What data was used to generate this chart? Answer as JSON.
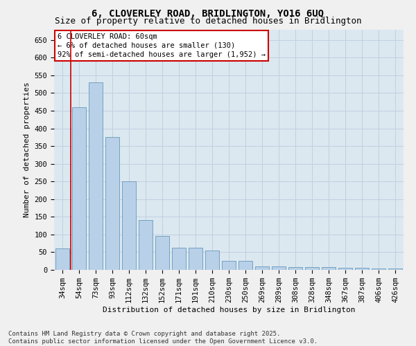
{
  "title1": "6, CLOVERLEY ROAD, BRIDLINGTON, YO16 6UQ",
  "title2": "Size of property relative to detached houses in Bridlington",
  "xlabel": "Distribution of detached houses by size in Bridlington",
  "ylabel": "Number of detached properties",
  "categories": [
    "34sqm",
    "54sqm",
    "73sqm",
    "93sqm",
    "112sqm",
    "132sqm",
    "152sqm",
    "171sqm",
    "191sqm",
    "210sqm",
    "230sqm",
    "250sqm",
    "269sqm",
    "289sqm",
    "308sqm",
    "328sqm",
    "348sqm",
    "367sqm",
    "387sqm",
    "406sqm",
    "426sqm"
  ],
  "values": [
    60,
    460,
    530,
    375,
    250,
    140,
    95,
    62,
    62,
    55,
    25,
    25,
    10,
    10,
    8,
    7,
    7,
    5,
    5,
    3,
    3
  ],
  "bar_color": "#b8d0e8",
  "bar_edge_color": "#6699bb",
  "red_line_color": "#cc0000",
  "red_line_x": 0.5,
  "annotation_title": "6 CLOVERLEY ROAD: 60sqm",
  "annotation_line1": "← 6% of detached houses are smaller (130)",
  "annotation_line2": "92% of semi-detached houses are larger (1,952) →",
  "annotation_box_facecolor": "#ffffff",
  "annotation_box_edgecolor": "#cc0000",
  "ylim": [
    0,
    680
  ],
  "yticks": [
    0,
    50,
    100,
    150,
    200,
    250,
    300,
    350,
    400,
    450,
    500,
    550,
    600,
    650
  ],
  "grid_color": "#c0d0e0",
  "plot_bg_color": "#dce8f0",
  "fig_bg_color": "#f0f0f0",
  "footer1": "Contains HM Land Registry data © Crown copyright and database right 2025.",
  "footer2": "Contains public sector information licensed under the Open Government Licence v3.0.",
  "title1_fontsize": 10,
  "title2_fontsize": 9,
  "axis_label_fontsize": 8,
  "tick_fontsize": 7.5,
  "annotation_fontsize": 7.5,
  "footer_fontsize": 6.5
}
